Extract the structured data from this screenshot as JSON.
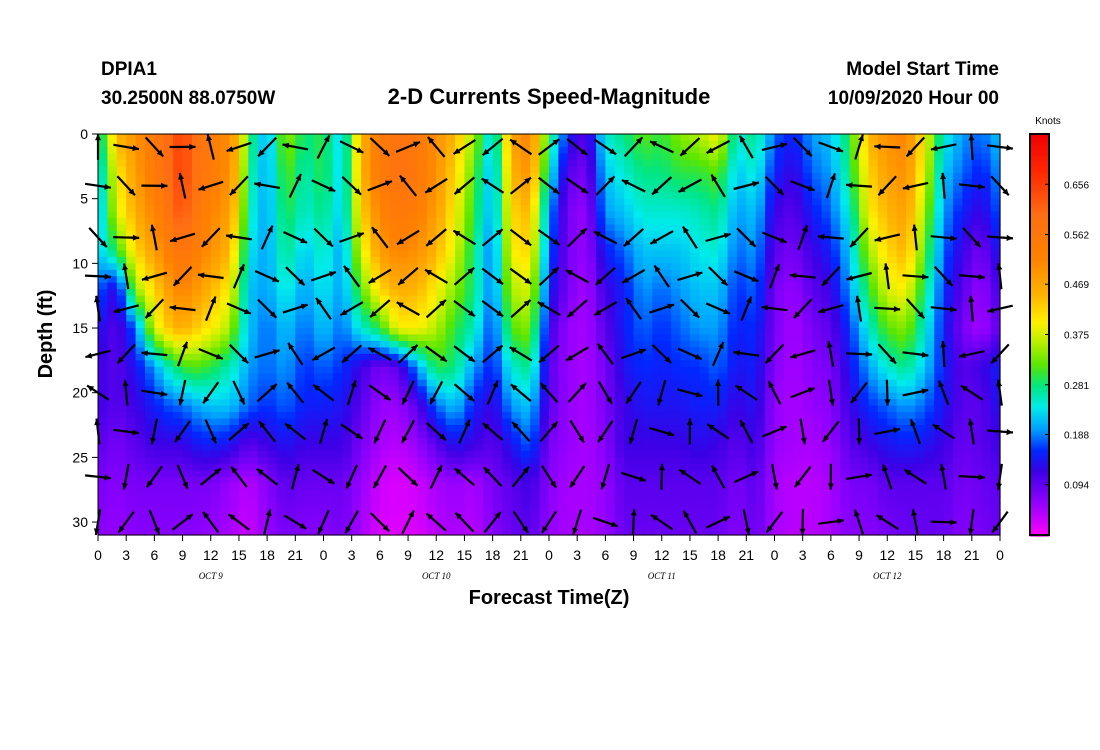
{
  "header": {
    "station_id": "DPIA1",
    "coordinates": "30.2500N 88.0750W",
    "title": "2-D Currents Speed-Magnitude",
    "model_start_label": "Model Start Time",
    "model_start_time": "10/09/2020 Hour 00"
  },
  "chart_data": {
    "type": "heatmap",
    "xlabel": "Forecast Time(Z)",
    "ylabel": "Depth (ft)",
    "x_tick_labels": [
      "0",
      "3",
      "6",
      "9",
      "12",
      "15",
      "18",
      "21",
      "0",
      "3",
      "6",
      "9",
      "12",
      "15",
      "18",
      "21",
      "0",
      "3",
      "6",
      "9",
      "12",
      "15",
      "18",
      "21",
      "0",
      "3",
      "6",
      "9",
      "12",
      "15",
      "18",
      "21",
      "0"
    ],
    "day_labels": [
      {
        "label": "OCT 9",
        "hour": 12
      },
      {
        "label": "OCT 10",
        "hour": 36
      },
      {
        "label": "OCT 11",
        "hour": 60
      },
      {
        "label": "OCT 12",
        "hour": 84
      }
    ],
    "xlim": [
      0,
      96
    ],
    "ylim": [
      0,
      31
    ],
    "y_ticks": [
      0,
      5,
      10,
      15,
      20,
      25,
      30
    ],
    "colorbar": {
      "label": "Knots",
      "ticks": [
        "0.656",
        "0.562",
        "0.469",
        "0.375",
        "0.281",
        "0.188",
        "0.094"
      ],
      "range": [
        0,
        0.75
      ]
    },
    "speed_field": {
      "hours": [
        0,
        2,
        4,
        6,
        8,
        9,
        10,
        12,
        14,
        15,
        16,
        18,
        20,
        22,
        24,
        26,
        28,
        30,
        32,
        34,
        36,
        38,
        40,
        42,
        44,
        46,
        48,
        50,
        52,
        54,
        56,
        58,
        60,
        62,
        64,
        66,
        68,
        70,
        72,
        74,
        76,
        78,
        80,
        82,
        84,
        86,
        88,
        90,
        92,
        94,
        96
      ],
      "depths": [
        0,
        3,
        6,
        9,
        12,
        15,
        18,
        21,
        24,
        27,
        31
      ],
      "speed_knots": [
        [
          0.25,
          0.45,
          0.5,
          0.55,
          0.62,
          0.66,
          0.6,
          0.55,
          0.5,
          0.45,
          0.3,
          0.2,
          0.35,
          0.28,
          0.3,
          0.22,
          0.45,
          0.55,
          0.58,
          0.56,
          0.5,
          0.45,
          0.35,
          0.22,
          0.48,
          0.52,
          0.3,
          0.15,
          0.1,
          0.25,
          0.28,
          0.32,
          0.3,
          0.34,
          0.36,
          0.4,
          0.25,
          0.28,
          0.18,
          0.15,
          0.2,
          0.22,
          0.3,
          0.45,
          0.5,
          0.52,
          0.4,
          0.25,
          0.2,
          0.18,
          0.22
        ],
        [
          0.22,
          0.4,
          0.48,
          0.55,
          0.62,
          0.66,
          0.6,
          0.55,
          0.5,
          0.42,
          0.28,
          0.2,
          0.32,
          0.26,
          0.3,
          0.22,
          0.45,
          0.55,
          0.58,
          0.56,
          0.5,
          0.42,
          0.32,
          0.2,
          0.45,
          0.5,
          0.25,
          0.1,
          0.08,
          0.22,
          0.25,
          0.28,
          0.28,
          0.3,
          0.3,
          0.32,
          0.22,
          0.25,
          0.15,
          0.12,
          0.18,
          0.2,
          0.28,
          0.42,
          0.48,
          0.5,
          0.38,
          0.22,
          0.18,
          0.15,
          0.2
        ],
        [
          0.2,
          0.38,
          0.46,
          0.52,
          0.6,
          0.64,
          0.58,
          0.52,
          0.48,
          0.4,
          0.26,
          0.2,
          0.3,
          0.25,
          0.28,
          0.22,
          0.42,
          0.52,
          0.56,
          0.54,
          0.48,
          0.4,
          0.3,
          0.2,
          0.42,
          0.45,
          0.2,
          0.08,
          0.06,
          0.2,
          0.22,
          0.25,
          0.25,
          0.25,
          0.26,
          0.28,
          0.2,
          0.22,
          0.12,
          0.1,
          0.15,
          0.18,
          0.25,
          0.4,
          0.45,
          0.48,
          0.35,
          0.2,
          0.15,
          0.12,
          0.18
        ],
        [
          0.22,
          0.3,
          0.42,
          0.48,
          0.55,
          0.58,
          0.55,
          0.5,
          0.45,
          0.36,
          0.24,
          0.2,
          0.28,
          0.22,
          0.26,
          0.2,
          0.38,
          0.48,
          0.52,
          0.5,
          0.45,
          0.38,
          0.28,
          0.18,
          0.4,
          0.42,
          0.18,
          0.08,
          0.06,
          0.15,
          0.18,
          0.22,
          0.22,
          0.22,
          0.24,
          0.25,
          0.18,
          0.2,
          0.1,
          0.08,
          0.12,
          0.15,
          0.22,
          0.35,
          0.42,
          0.45,
          0.32,
          0.18,
          0.12,
          0.08,
          0.15
        ],
        [
          0.18,
          0.12,
          0.35,
          0.42,
          0.5,
          0.52,
          0.5,
          0.45,
          0.4,
          0.32,
          0.22,
          0.2,
          0.25,
          0.2,
          0.24,
          0.2,
          0.32,
          0.42,
          0.46,
          0.45,
          0.4,
          0.34,
          0.28,
          0.18,
          0.36,
          0.38,
          0.15,
          0.08,
          0.05,
          0.12,
          0.15,
          0.2,
          0.18,
          0.2,
          0.22,
          0.22,
          0.16,
          0.18,
          0.08,
          0.06,
          0.1,
          0.12,
          0.2,
          0.3,
          0.38,
          0.4,
          0.28,
          0.16,
          0.1,
          0.06,
          0.12
        ],
        [
          0.14,
          0.1,
          0.18,
          0.38,
          0.45,
          0.46,
          0.44,
          0.4,
          0.36,
          0.28,
          0.22,
          0.18,
          0.22,
          0.18,
          0.22,
          0.18,
          0.25,
          0.3,
          0.4,
          0.4,
          0.36,
          0.3,
          0.26,
          0.16,
          0.32,
          0.34,
          0.12,
          0.06,
          0.05,
          0.1,
          0.15,
          0.18,
          0.16,
          0.18,
          0.2,
          0.2,
          0.15,
          0.16,
          0.08,
          0.05,
          0.08,
          0.1,
          0.16,
          0.25,
          0.32,
          0.34,
          0.25,
          0.15,
          0.08,
          0.05,
          0.1
        ],
        [
          0.12,
          0.1,
          0.14,
          0.2,
          0.28,
          0.3,
          0.32,
          0.3,
          0.26,
          0.24,
          0.2,
          0.18,
          0.2,
          0.16,
          0.18,
          0.16,
          0.12,
          0.08,
          0.1,
          0.2,
          0.3,
          0.28,
          0.2,
          0.15,
          0.25,
          0.28,
          0.1,
          0.06,
          0.05,
          0.08,
          0.14,
          0.16,
          0.15,
          0.16,
          0.16,
          0.18,
          0.14,
          0.15,
          0.07,
          0.05,
          0.07,
          0.08,
          0.14,
          0.2,
          0.25,
          0.28,
          0.22,
          0.15,
          0.1,
          0.12,
          0.15
        ],
        [
          0.12,
          0.1,
          0.12,
          0.15,
          0.18,
          0.18,
          0.2,
          0.22,
          0.22,
          0.2,
          0.18,
          0.16,
          0.18,
          0.15,
          0.15,
          0.14,
          0.1,
          0.06,
          0.06,
          0.1,
          0.18,
          0.22,
          0.15,
          0.12,
          0.2,
          0.22,
          0.1,
          0.06,
          0.05,
          0.08,
          0.12,
          0.14,
          0.14,
          0.14,
          0.15,
          0.15,
          0.12,
          0.14,
          0.06,
          0.05,
          0.06,
          0.07,
          0.12,
          0.16,
          0.18,
          0.2,
          0.18,
          0.14,
          0.1,
          0.1,
          0.14
        ],
        [
          0.1,
          0.08,
          0.1,
          0.12,
          0.12,
          0.12,
          0.14,
          0.15,
          0.14,
          0.12,
          0.1,
          0.12,
          0.14,
          0.12,
          0.12,
          0.12,
          0.08,
          0.05,
          0.04,
          0.06,
          0.1,
          0.14,
          0.12,
          0.1,
          0.14,
          0.18,
          0.08,
          0.06,
          0.05,
          0.07,
          0.12,
          0.12,
          0.12,
          0.12,
          0.13,
          0.12,
          0.1,
          0.12,
          0.06,
          0.05,
          0.05,
          0.06,
          0.1,
          0.12,
          0.14,
          0.15,
          0.14,
          0.12,
          0.09,
          0.1,
          0.12
        ],
        [
          0.08,
          0.07,
          0.08,
          0.08,
          0.08,
          0.08,
          0.08,
          0.08,
          0.06,
          0.05,
          0.04,
          0.07,
          0.1,
          0.09,
          0.09,
          0.09,
          0.06,
          0.03,
          0.02,
          0.03,
          0.05,
          0.06,
          0.05,
          0.08,
          0.1,
          0.12,
          0.07,
          0.05,
          0.05,
          0.06,
          0.1,
          0.1,
          0.1,
          0.1,
          0.1,
          0.1,
          0.08,
          0.1,
          0.05,
          0.04,
          0.04,
          0.05,
          0.08,
          0.08,
          0.1,
          0.1,
          0.1,
          0.1,
          0.08,
          0.09,
          0.1
        ],
        [
          0.07,
          0.06,
          0.07,
          0.07,
          0.07,
          0.07,
          0.07,
          0.06,
          0.05,
          0.04,
          0.03,
          0.06,
          0.08,
          0.07,
          0.07,
          0.08,
          0.05,
          0.02,
          0.02,
          0.02,
          0.04,
          0.05,
          0.04,
          0.07,
          0.09,
          0.1,
          0.06,
          0.05,
          0.05,
          0.06,
          0.09,
          0.09,
          0.09,
          0.09,
          0.09,
          0.09,
          0.07,
          0.09,
          0.05,
          0.04,
          0.04,
          0.05,
          0.07,
          0.07,
          0.08,
          0.09,
          0.09,
          0.09,
          0.07,
          0.08,
          0.09
        ]
      ]
    }
  }
}
